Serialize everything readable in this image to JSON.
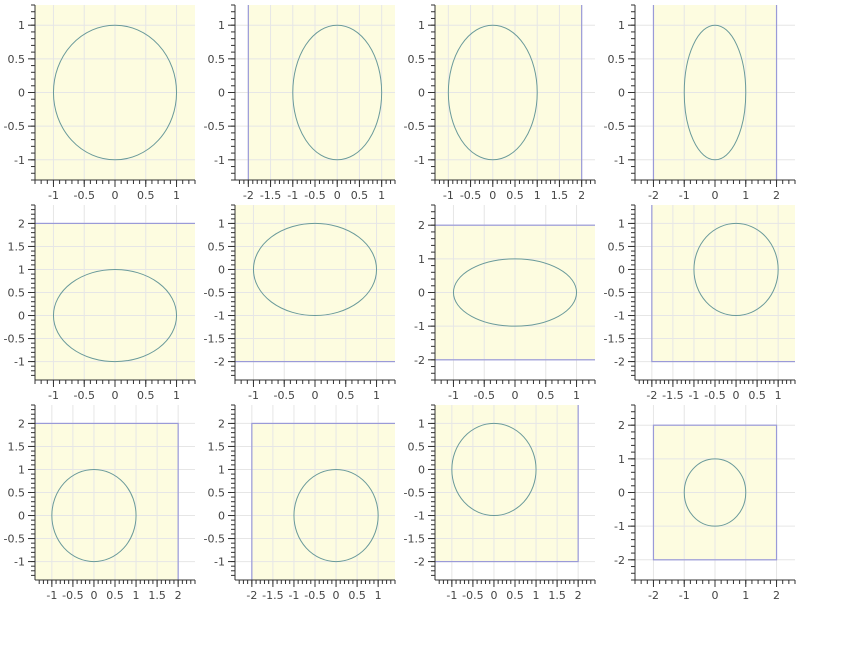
{
  "chart_data": [
    {
      "type": "line",
      "xlim": [
        -1.3,
        1.3
      ],
      "ylim": [
        -1.3,
        1.3
      ],
      "xticks": [
        -1,
        -0.5,
        0,
        0.5,
        1
      ],
      "yticks": [
        -1,
        -0.5,
        0,
        0.5,
        1
      ],
      "xtick_labels": [
        "-1",
        "-0.5",
        "0",
        "0.5",
        "1"
      ],
      "ytick_labels": [
        "-1",
        "-0.5",
        "0",
        "0.5",
        "1"
      ],
      "circle": {
        "cx": 0,
        "cy": 0,
        "r": 1
      },
      "box": {
        "x": [
          -2,
          2
        ],
        "y": [
          -2,
          2
        ]
      }
    },
    {
      "type": "line",
      "xlim": [
        -2.3,
        1.3
      ],
      "ylim": [
        -1.3,
        1.3
      ],
      "xticks": [
        -2,
        -1.5,
        -1,
        -0.5,
        0,
        0.5,
        1
      ],
      "yticks": [
        -1,
        -0.5,
        0,
        0.5,
        1
      ],
      "xtick_labels": [
        "-2",
        "-1.5",
        "-1",
        "-0.5",
        "0",
        "0.5",
        "1"
      ],
      "ytick_labels": [
        "-1",
        "-0.5",
        "0",
        "0.5",
        "1"
      ],
      "circle": {
        "cx": 0,
        "cy": 0,
        "r": 1
      },
      "box": {
        "x": [
          -2,
          2
        ],
        "y": [
          -2,
          2
        ]
      }
    },
    {
      "type": "line",
      "xlim": [
        -1.3,
        2.3
      ],
      "ylim": [
        -1.3,
        1.3
      ],
      "xticks": [
        -1,
        -0.5,
        0,
        0.5,
        1,
        1.5,
        2
      ],
      "yticks": [
        -1,
        -0.5,
        0,
        0.5,
        1
      ],
      "xtick_labels": [
        "-1",
        "-0.5",
        "0",
        "0.5",
        "1",
        "1.5",
        "2"
      ],
      "ytick_labels": [
        "-1",
        "-0.5",
        "0",
        "0.5",
        "1"
      ],
      "circle": {
        "cx": 0,
        "cy": 0,
        "r": 1
      },
      "box": {
        "x": [
          -2,
          2
        ],
        "y": [
          -2,
          2
        ]
      }
    },
    {
      "type": "line",
      "xlim": [
        -2.6,
        2.6
      ],
      "ylim": [
        -1.3,
        1.3
      ],
      "xticks": [
        -2,
        -1,
        0,
        1,
        2
      ],
      "yticks": [
        -1,
        -0.5,
        0,
        0.5,
        1
      ],
      "xtick_labels": [
        "-2",
        "-1",
        "0",
        "1",
        "2"
      ],
      "ytick_labels": [
        "-1",
        "-0.5",
        "0",
        "0.5",
        "1"
      ],
      "circle": {
        "cx": 0,
        "cy": 0,
        "r": 1
      },
      "box": {
        "x": [
          -2,
          2
        ],
        "y": [
          -2,
          2
        ]
      }
    },
    {
      "type": "line",
      "xlim": [
        -1.3,
        1.3
      ],
      "ylim": [
        -1.4,
        2.4
      ],
      "xticks": [
        -1,
        -0.5,
        0,
        0.5,
        1
      ],
      "yticks": [
        -1,
        -0.5,
        0,
        0.5,
        1,
        1.5,
        2
      ],
      "xtick_labels": [
        "-1",
        "-0.5",
        "0",
        "0.5",
        "1"
      ],
      "ytick_labels": [
        "-1",
        "-0.5",
        "0",
        "0.5",
        "1",
        "1.5",
        "2"
      ],
      "circle": {
        "cx": 0,
        "cy": 0,
        "r": 1
      },
      "box": {
        "x": [
          -2,
          2
        ],
        "y": [
          -2,
          2
        ]
      }
    },
    {
      "type": "line",
      "xlim": [
        -1.3,
        1.3
      ],
      "ylim": [
        -2.4,
        1.4
      ],
      "xticks": [
        -1,
        -0.5,
        0,
        0.5,
        1
      ],
      "yticks": [
        -2,
        -1.5,
        -1,
        -0.5,
        0,
        0.5,
        1
      ],
      "xtick_labels": [
        "-1",
        "-0.5",
        "0",
        "0.5",
        "1"
      ],
      "ytick_labels": [
        "-2",
        "-1.5",
        "-1",
        "-0.5",
        "0",
        "0.5",
        "1"
      ],
      "circle": {
        "cx": 0,
        "cy": 0,
        "r": 1
      },
      "box": {
        "x": [
          -2,
          2
        ],
        "y": [
          -2,
          2
        ]
      }
    },
    {
      "type": "line",
      "xlim": [
        -1.3,
        1.3
      ],
      "ylim": [
        -2.6,
        2.6
      ],
      "xticks": [
        -1,
        -0.5,
        0,
        0.5,
        1
      ],
      "yticks": [
        -2,
        -1,
        0,
        1,
        2
      ],
      "xtick_labels": [
        "-1",
        "-0.5",
        "0",
        "0.5",
        "1"
      ],
      "ytick_labels": [
        "-2",
        "-1",
        "0",
        "1",
        "2"
      ],
      "circle": {
        "cx": 0,
        "cy": 0,
        "r": 1
      },
      "box": {
        "x": [
          -2,
          2
        ],
        "y": [
          -2,
          2
        ]
      }
    },
    {
      "type": "line",
      "xlim": [
        -2.4,
        1.4
      ],
      "ylim": [
        -2.4,
        1.4
      ],
      "xticks": [
        -2,
        -1.5,
        -1,
        -0.5,
        0,
        0.5,
        1
      ],
      "yticks": [
        -2,
        -1.5,
        -1,
        -0.5,
        0,
        0.5,
        1
      ],
      "xtick_labels": [
        "-2",
        "-1.5",
        "-1",
        "-0.5",
        "0",
        "0.5",
        "1"
      ],
      "ytick_labels": [
        "-2",
        "-1.5",
        "-1",
        "-0.5",
        "0",
        "0.5",
        "1"
      ],
      "circle": {
        "cx": 0,
        "cy": 0,
        "r": 1
      },
      "box": {
        "x": [
          -2,
          2
        ],
        "y": [
          -2,
          2
        ]
      }
    },
    {
      "type": "line",
      "xlim": [
        -1.4,
        2.4
      ],
      "ylim": [
        -1.4,
        2.4
      ],
      "xticks": [
        -1,
        -0.5,
        0,
        0.5,
        1,
        1.5,
        2
      ],
      "yticks": [
        -1,
        -0.5,
        0,
        0.5,
        1,
        1.5,
        2
      ],
      "xtick_labels": [
        "-1",
        "-0.5",
        "0",
        "0.5",
        "1",
        "1.5",
        "2"
      ],
      "ytick_labels": [
        "-1",
        "-0.5",
        "0",
        "0.5",
        "1",
        "1.5",
        "2"
      ],
      "circle": {
        "cx": 0,
        "cy": 0,
        "r": 1
      },
      "box": {
        "x": [
          -2,
          2
        ],
        "y": [
          -2,
          2
        ]
      }
    },
    {
      "type": "line",
      "xlim": [
        -2.4,
        1.4
      ],
      "ylim": [
        -1.4,
        2.4
      ],
      "xticks": [
        -2,
        -1.5,
        -1,
        -0.5,
        0,
        0.5,
        1
      ],
      "yticks": [
        -1,
        -0.5,
        0,
        0.5,
        1,
        1.5,
        2
      ],
      "xtick_labels": [
        "-2",
        "-1.5",
        "-1",
        "-0.5",
        "0",
        "0.5",
        "1"
      ],
      "ytick_labels": [
        "-1",
        "-0.5",
        "0",
        "0.5",
        "1",
        "1.5",
        "2"
      ],
      "circle": {
        "cx": 0,
        "cy": 0,
        "r": 1
      },
      "box": {
        "x": [
          -2,
          2
        ],
        "y": [
          -2,
          2
        ]
      }
    },
    {
      "type": "line",
      "xlim": [
        -1.4,
        2.4
      ],
      "ylim": [
        -2.4,
        1.4
      ],
      "xticks": [
        -1,
        -0.5,
        0,
        0.5,
        1,
        1.5,
        2
      ],
      "yticks": [
        -2,
        -1.5,
        -1,
        -0.5,
        0,
        0.5,
        1
      ],
      "xtick_labels": [
        "-1",
        "-0.5",
        "0",
        "0.5",
        "1",
        "1.5",
        "2"
      ],
      "ytick_labels": [
        "-2",
        "-1.5",
        "-1",
        "-0.5",
        "0",
        "0.5",
        "1"
      ],
      "circle": {
        "cx": 0,
        "cy": 0,
        "r": 1
      },
      "box": {
        "x": [
          -2,
          2
        ],
        "y": [
          -2,
          2
        ]
      }
    },
    {
      "type": "line",
      "xlim": [
        -2.6,
        2.6
      ],
      "ylim": [
        -2.6,
        2.6
      ],
      "xticks": [
        -2,
        -1,
        0,
        1,
        2
      ],
      "yticks": [
        -2,
        -1,
        0,
        1,
        2
      ],
      "xtick_labels": [
        "-2",
        "-1",
        "0",
        "1",
        "2"
      ],
      "ytick_labels": [
        "-2",
        "-1",
        "0",
        "1",
        "2"
      ],
      "circle": {
        "cx": 0,
        "cy": 0,
        "r": 1
      },
      "box": {
        "x": [
          -2,
          2
        ],
        "y": [
          -2,
          2
        ]
      }
    }
  ],
  "style": {
    "plot_background": "#fdfce0",
    "grid_color": "#e6e6e6",
    "circle_color": "#6a9a9a",
    "box_color": "#9a9ad8",
    "axis_color": "#333333",
    "label_color": "#444444"
  }
}
